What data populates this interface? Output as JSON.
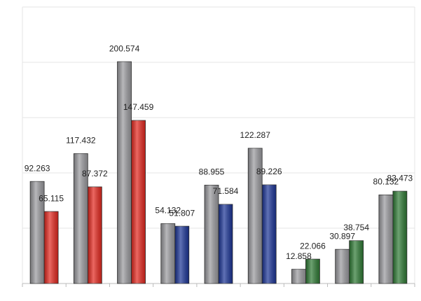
{
  "chart_data": {
    "type": "bar",
    "categories": [
      null,
      null,
      null,
      null,
      null,
      null,
      null,
      null,
      null
    ],
    "series": [
      {
        "color": "#9a9a9e",
        "values": [
          92.263,
          117.432,
          200.574,
          54.132,
          88.955,
          122.287,
          12.858,
          30.897,
          80.132
        ]
      },
      {
        "colors": [
          "#e3281f",
          "#e3281f",
          "#e3281f",
          "#1c3596",
          "#1c3596",
          "#1c3596",
          "#2f7a35",
          "#2f7a35",
          "#2f7a35"
        ],
        "values": [
          65.115,
          87.372,
          147.459,
          51.807,
          71.584,
          89.226,
          22.066,
          38.754,
          83.473
        ]
      }
    ],
    "ylim": [
      0,
      250
    ],
    "yticks": [
      0,
      50,
      100,
      150,
      200,
      250
    ],
    "grid": true
  }
}
